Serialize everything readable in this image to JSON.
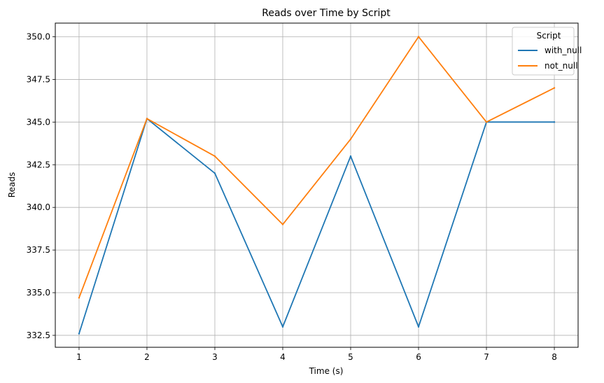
{
  "chart_data": {
    "type": "line",
    "title": "Reads over Time by Script",
    "xlabel": "Time (s)",
    "ylabel": "Reads",
    "x": [
      1,
      2,
      3,
      4,
      5,
      6,
      7,
      8
    ],
    "xlim": [
      0.65,
      8.35
    ],
    "ylim": [
      331.8,
      350.8
    ],
    "xticks": [
      "1",
      "2",
      "3",
      "4",
      "5",
      "6",
      "7",
      "8"
    ],
    "yticks": [
      "332.5",
      "335.0",
      "337.5",
      "340.0",
      "342.5",
      "345.0",
      "347.5",
      "350.0"
    ],
    "grid": true,
    "legend": {
      "title": "Script",
      "position": "top-right"
    },
    "series": [
      {
        "name": "with_null",
        "color": "#1f77b4",
        "values": [
          332.6,
          345.2,
          342.0,
          333.0,
          343.0,
          333.0,
          345.0,
          345.0
        ]
      },
      {
        "name": "not_null",
        "color": "#ff7f0e",
        "values": [
          334.7,
          345.2,
          343.0,
          339.0,
          344.0,
          350.0,
          345.0,
          347.0
        ]
      }
    ]
  }
}
